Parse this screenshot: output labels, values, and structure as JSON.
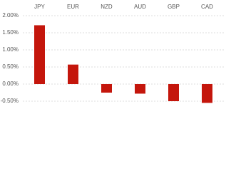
{
  "chart_data": {
    "type": "bar",
    "categories": [
      "JPY",
      "EUR",
      "NZD",
      "AUD",
      "GBP",
      "CAD"
    ],
    "values": [
      1.72,
      0.57,
      -0.25,
      -0.28,
      -0.5,
      -0.55
    ],
    "color": "#c4160c",
    "ylim": [
      -0.6,
      2.0
    ],
    "yticks": [
      {
        "value": 2,
        "label": "2.00%"
      },
      {
        "value": 1.5,
        "label": "1.50%"
      },
      {
        "value": 1,
        "label": "1.00%"
      },
      {
        "value": 0.5,
        "label": "0.50%"
      },
      {
        "value": 0,
        "label": "0.00%"
      },
      {
        "value": -0.5,
        "label": "-0.50%"
      }
    ],
    "grid": true
  }
}
